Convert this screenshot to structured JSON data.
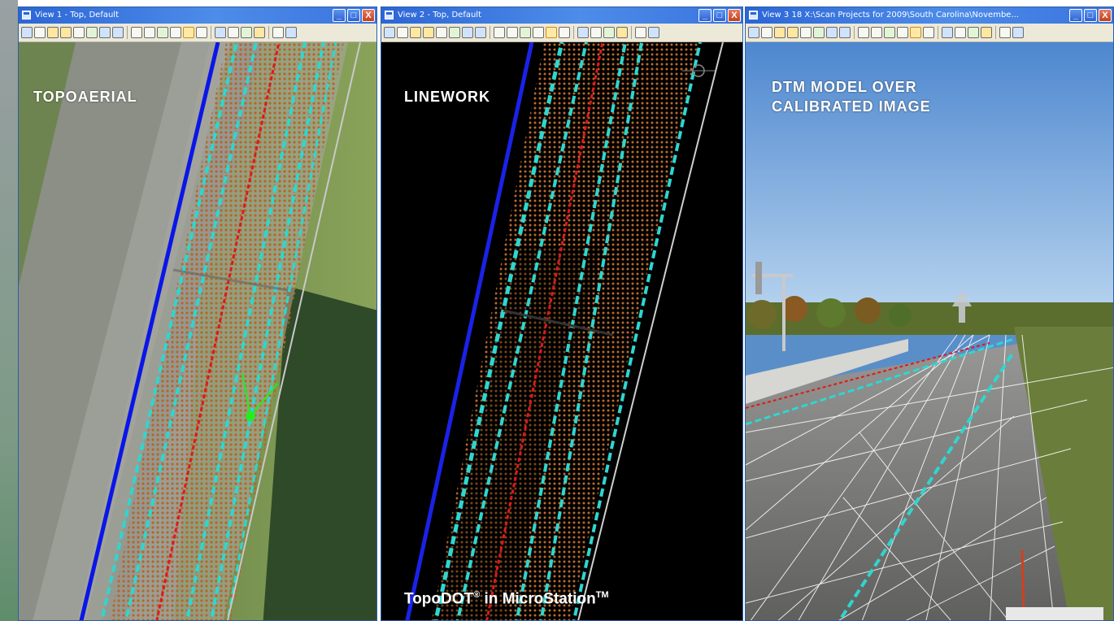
{
  "views": [
    {
      "title": "View 1 - Top, Default",
      "overlay_label": "TOPOAERIAL"
    },
    {
      "title": "View 2 - Top, Default",
      "overlay_label": "LINEWORK",
      "footer": {
        "product": "TopoDOT",
        "product_mark": "®",
        "connector": "in",
        "platform": "MicroStation",
        "platform_mark": "TM"
      }
    },
    {
      "title": "View 3   18 X:\\Scan Projects for 2009\\South Carolina\\Novembe...",
      "overlay_label_line1": "DTM MODEL OVER",
      "overlay_label_line2": "CALIBRATED IMAGE"
    }
  ],
  "window_buttons": {
    "minimize": "_",
    "maximize": "□",
    "close": "X"
  },
  "toolbar_icons": [
    "view-attributes-icon",
    "dropdown-icon",
    "view-display-icon",
    "brightness-icon",
    "dropdown-icon",
    "update-view-icon",
    "zoom-in-icon",
    "zoom-out-icon",
    "window-area-icon",
    "fit-view-icon",
    "rotate-view-icon",
    "pan-view-icon",
    "view-previous-icon",
    "view-next-icon",
    "copy-view-icon",
    "camera-icon",
    "clip-volume-icon",
    "render-icon",
    "walk-icon",
    "view-toggle-icon"
  ],
  "colors": {
    "titlebar": "#2c66d6",
    "blue_line": "#0a16e8",
    "cyan_breakline": "#2fd6d0",
    "red_centerline": "#e01818",
    "dot_grid": "#b86a2c",
    "sky": "#6a9fd8"
  }
}
